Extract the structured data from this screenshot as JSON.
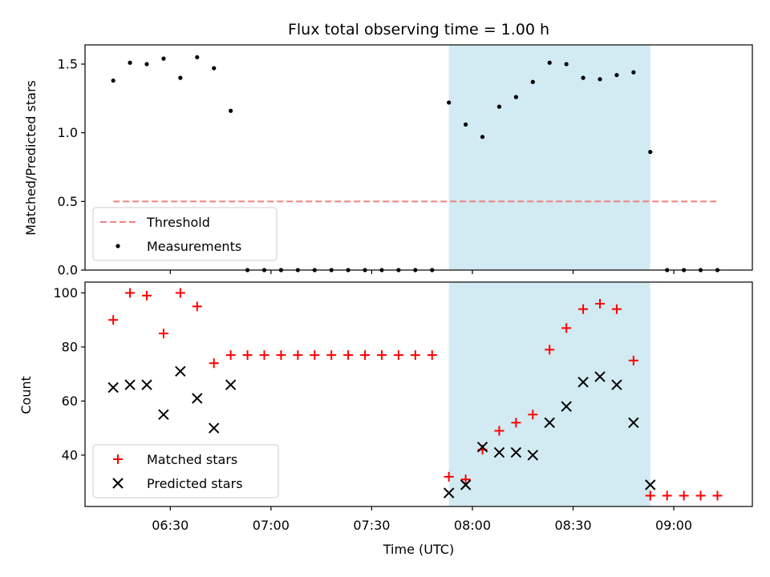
{
  "chart_data": [
    {
      "type": "scatter",
      "title": "Flux total observing time = 1.00 h",
      "ylabel": "Matched/Predicted stars",
      "ylim": [
        0,
        1.64
      ],
      "yticks": [
        0.0,
        0.5,
        1.0,
        1.5
      ],
      "ytick_labels": [
        "0.0",
        "0.5",
        "1.0",
        "1.5"
      ],
      "grid": false,
      "legend_position": "lower-left",
      "shaded_region": {
        "x_start": "07:53",
        "x_end": "08:53",
        "color": "#add8e6"
      },
      "series": [
        {
          "name": "Threshold",
          "style": "dashed-line",
          "color": "#f08080",
          "x": [
            "06:13",
            "09:13"
          ],
          "y": [
            0.5,
            0.5
          ]
        },
        {
          "name": "Measurements",
          "style": "dot",
          "color": "#000000",
          "x": [
            "06:13",
            "06:18",
            "06:23",
            "06:28",
            "06:33",
            "06:38",
            "06:43",
            "06:48",
            "06:53",
            "06:58",
            "07:03",
            "07:08",
            "07:13",
            "07:18",
            "07:23",
            "07:28",
            "07:33",
            "07:38",
            "07:43",
            "07:48",
            "07:53",
            "07:58",
            "08:03",
            "08:08",
            "08:13",
            "08:18",
            "08:23",
            "08:28",
            "08:33",
            "08:38",
            "08:43",
            "08:48",
            "08:53",
            "08:58",
            "09:03",
            "09:08",
            "09:13"
          ],
          "y": [
            1.38,
            1.51,
            1.5,
            1.54,
            1.4,
            1.55,
            1.47,
            1.16,
            0,
            0,
            0,
            0,
            0,
            0,
            0,
            0,
            0,
            0,
            0,
            0,
            1.22,
            1.06,
            0.97,
            1.19,
            1.26,
            1.37,
            1.51,
            1.5,
            1.4,
            1.39,
            1.42,
            1.44,
            0.86,
            0,
            0,
            0,
            0
          ]
        }
      ]
    },
    {
      "type": "scatter",
      "xlabel": "Time (UTC)",
      "ylabel": "Count",
      "ylim": [
        21,
        104
      ],
      "yticks": [
        40,
        60,
        80,
        100
      ],
      "ytick_labels": [
        "40",
        "60",
        "80",
        "100"
      ],
      "xticks": [
        "06:30",
        "07:00",
        "07:30",
        "08:00",
        "08:30",
        "09:00"
      ],
      "grid": false,
      "legend_position": "lower-left",
      "shaded_region": {
        "x_start": "07:53",
        "x_end": "08:53",
        "color": "#add8e6"
      },
      "series": [
        {
          "name": "Matched stars",
          "marker": "plus",
          "color": "#ff0000",
          "x": [
            "06:13",
            "06:18",
            "06:23",
            "06:28",
            "06:33",
            "06:38",
            "06:43",
            "06:48",
            "06:53",
            "06:58",
            "07:03",
            "07:08",
            "07:13",
            "07:18",
            "07:23",
            "07:28",
            "07:33",
            "07:38",
            "07:43",
            "07:48",
            "07:53",
            "07:58",
            "08:03",
            "08:08",
            "08:13",
            "08:18",
            "08:23",
            "08:28",
            "08:33",
            "08:38",
            "08:43",
            "08:48",
            "08:53",
            "08:58",
            "09:03",
            "09:08",
            "09:13"
          ],
          "y": [
            90,
            100,
            99,
            85,
            100,
            95,
            74,
            77,
            77,
            77,
            77,
            77,
            77,
            77,
            77,
            77,
            77,
            77,
            77,
            77,
            32,
            31,
            42,
            49,
            52,
            55,
            79,
            87,
            94,
            96,
            94,
            75,
            25,
            25,
            25,
            25,
            25
          ]
        },
        {
          "name": "Predicted stars",
          "marker": "x",
          "color": "#000000",
          "x": [
            "06:13",
            "06:18",
            "06:23",
            "06:28",
            "06:33",
            "06:38",
            "06:43",
            "06:48",
            "07:53",
            "07:58",
            "08:03",
            "08:08",
            "08:13",
            "08:18",
            "08:23",
            "08:28",
            "08:33",
            "08:38",
            "08:43",
            "08:48",
            "08:53"
          ],
          "y": [
            65,
            66,
            66,
            55,
            71,
            61,
            50,
            66,
            26,
            29,
            43,
            41,
            41,
            40,
            52,
            58,
            67,
            69,
            66,
            52,
            29
          ]
        }
      ]
    }
  ]
}
